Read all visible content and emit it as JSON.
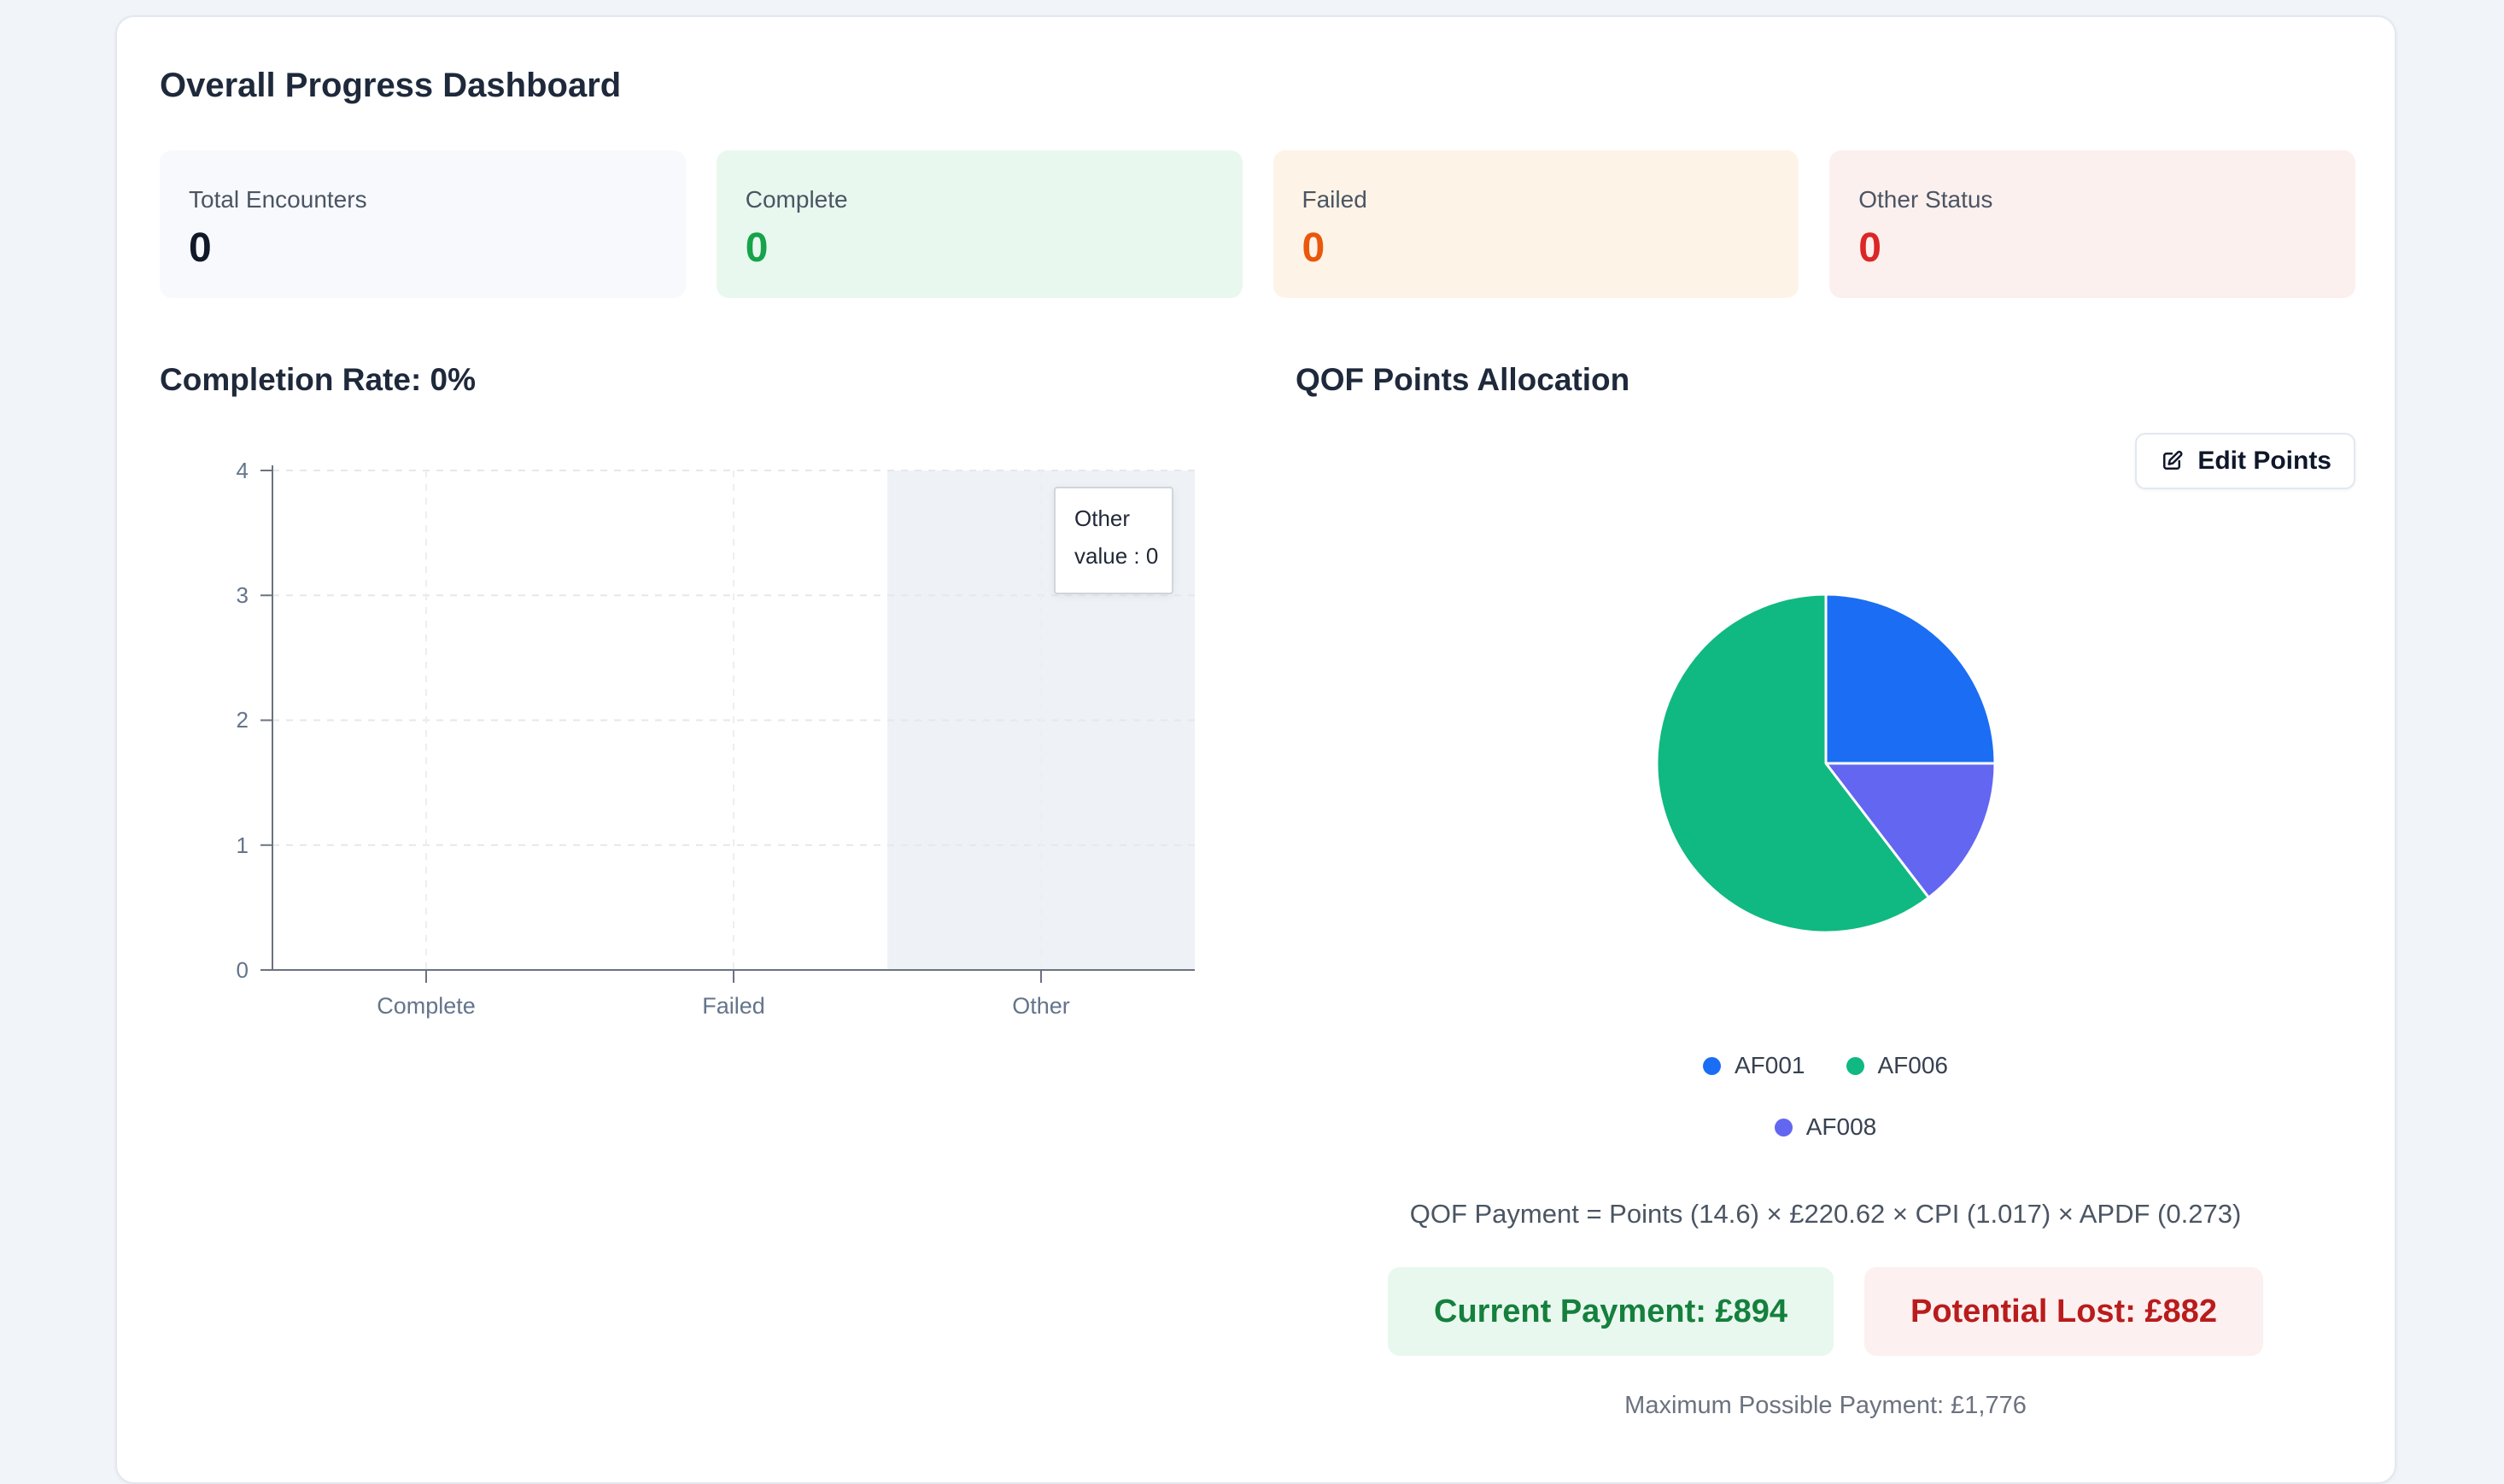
{
  "page": {
    "title": "Overall Progress Dashboard"
  },
  "stats": [
    {
      "label": "Total Encounters",
      "value": "0",
      "bg": "#f7f9fc",
      "color": "#111827"
    },
    {
      "label": "Complete",
      "value": "0",
      "bg": "#e9f8ef",
      "color": "#16a34a"
    },
    {
      "label": "Failed",
      "value": "0",
      "bg": "#fdf4e7",
      "color": "#ea580c"
    },
    {
      "label": "Other Status",
      "value": "0",
      "bg": "#fcf0ef",
      "color": "#dc2626"
    }
  ],
  "completion": {
    "heading": "Completion Rate: 0%",
    "chart_data": {
      "type": "bar",
      "title": "Completion Rate: 0%",
      "categories": [
        "Complete",
        "Failed",
        "Other"
      ],
      "values": [
        0,
        0,
        0
      ],
      "xlabel": "",
      "ylabel": "",
      "ylim": [
        0,
        4
      ],
      "yticks": [
        "0",
        "1",
        "2",
        "3",
        "4"
      ],
      "grid": "dashed",
      "highlighted_category": "Other",
      "highlight_band_color": "#eef2f7",
      "axis_color": "#6b7280",
      "label_color": "#64748b",
      "tooltip": {
        "title": "Other",
        "value_line": "value : 0"
      }
    }
  },
  "qof": {
    "heading": "QOF Points Allocation",
    "edit_button_label": "Edit Points",
    "chart_data": {
      "type": "pie",
      "title": "QOF Points Allocation",
      "slices": [
        {
          "label": "AF001",
          "percent": 25,
          "color": "#1b6ef3"
        },
        {
          "label": "AF006",
          "percent": 60.4,
          "color": "#10b981"
        },
        {
          "label": "AF008",
          "percent": 14.6,
          "color": "#6366f1"
        }
      ],
      "draw_order": [
        0,
        2,
        1
      ],
      "start_angle_deg": 0,
      "legend_position": "bottom"
    },
    "formula": "QOF Payment = Points (14.6) × £220.62 × CPI (1.017) × APDF (0.273)",
    "current_payment": "Current Payment: £894",
    "potential_lost": "Potential Lost: £882",
    "max_payment": "Maximum Possible Payment: £1,776"
  }
}
